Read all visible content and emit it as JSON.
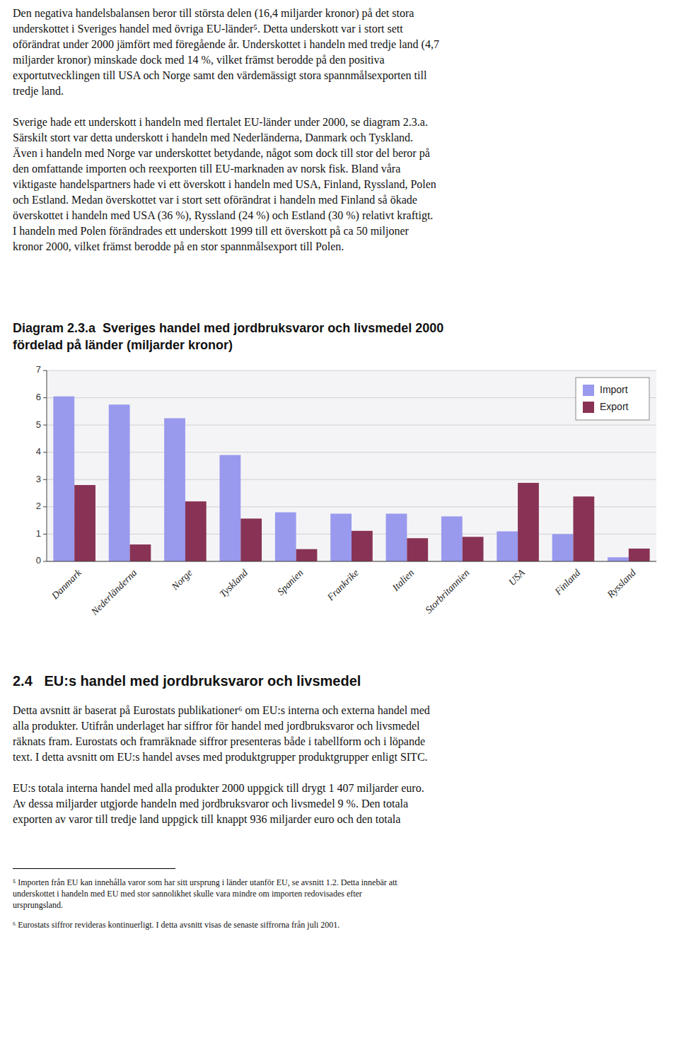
{
  "text_top": "Den negativa handelsbalansen beror till största delen (16,4 miljarder kronor) på det stora\nunderskottet i Sveriges handel med övriga EU-länder⁵. Detta underskott var i stort sett\noförändrat under 2000 jämfört med föregående år. Underskottet i handeln med tredje land (4,7\nmiljarder kronor) minskade dock med 14 %, vilket främst berodde på den positiva\nexportutvecklingen till USA och Norge samt den värdemässigt stora spannmålsexporten till\ntredje land.\n\nSverige hade ett underskott i handeln med flertalet EU-länder under 2000, se diagram 2.3.a.\nSärskilt stort var detta underskott i handeln med Nederländerna, Danmark och Tyskland.\nÄven i handeln med Norge var underskottet betydande, något som dock till stor del beror på\nden omfattande importen och reexporten till EU-marknaden av norsk fisk. Bland våra\nviktigaste handelspartners hade vi ett överskott i handeln med USA, Finland, Ryssland, Polen\noch Estland. Medan överskottet var i stort sett oförändrat i handeln med Finland så ökade\növerskottet i handeln med USA (36 %), Ryssland (24 %) och Estland (30 %) relativt kraftigt.\nI handeln med Polen förändrades ett underskott 1999 till ett överskott på ca 50 miljoner\nkronor 2000, vilket främst berodde på en stor spannmålsexport till Polen.",
  "chart_data": {
    "type": "bar",
    "title": "Diagram 2.3.a  Sveriges handel med jordbruksvaror och livsmedel 2000\nfördelad på länder (miljarder kronor)",
    "categories": [
      "Danmark",
      "Nederländerna",
      "Norge",
      "Tyskland",
      "Spanien",
      "Frankrike",
      "Italien",
      "Storbritannien",
      "USA",
      "Finland",
      "Ryssland"
    ],
    "series": [
      {
        "name": "Import",
        "color": "#9999ee",
        "values": [
          6.05,
          5.75,
          5.25,
          3.9,
          1.8,
          1.75,
          1.75,
          1.65,
          1.1,
          1.0,
          0.15
        ]
      },
      {
        "name": "Export",
        "color": "#883355",
        "values": [
          2.8,
          0.62,
          2.2,
          1.57,
          0.45,
          1.12,
          0.85,
          0.9,
          2.88,
          2.38,
          0.47
        ]
      }
    ],
    "ylim": [
      0,
      7
    ],
    "yticks": [
      0,
      1,
      2,
      3,
      4,
      5,
      6,
      7
    ],
    "grid": true,
    "legend": "upper right"
  },
  "text_bottom_heading": "2.4   EU:s handel med jordbruksvaror och livsmedel",
  "text_bottom_body": "Detta avsnitt är baserat på Eurostats publikationer⁶ om EU:s interna och externa handel med\nalla produkter. Utifrån underlaget har siffror för handel med jordbruksvaror och livsmedel\nräknats fram. Eurostats och framräknade siffror presenteras både i tabellform och i löpande\ntext. I detta avsnitt om EU:s handel avses med produktgrupper produktgrupper enligt SITC.\n\nEU:s totala interna handel med alla produkter 2000 uppgick till drygt 1 407 miljarder euro.\nAv dessa miljarder utgjorde handeln med jordbruksvaror och livsmedel 9 %. Den totala\nexporten av varor till tredje land uppgick till knappt 936 miljarder euro och den totala",
  "footnote1": "⁵ Importen från EU kan innehålla varor som har sitt ursprung i länder utanför EU, se avsnitt 1.2. Detta innebär att\nunderskottet i handeln med EU med stor sannolikhet skulle vara mindre om importen redovisades efter\nursprungsland.",
  "footnote2": "⁶ Eurostats siffror revideras kontinuerligt. I detta avsnitt visas de senaste siffrorna från juli 2001."
}
